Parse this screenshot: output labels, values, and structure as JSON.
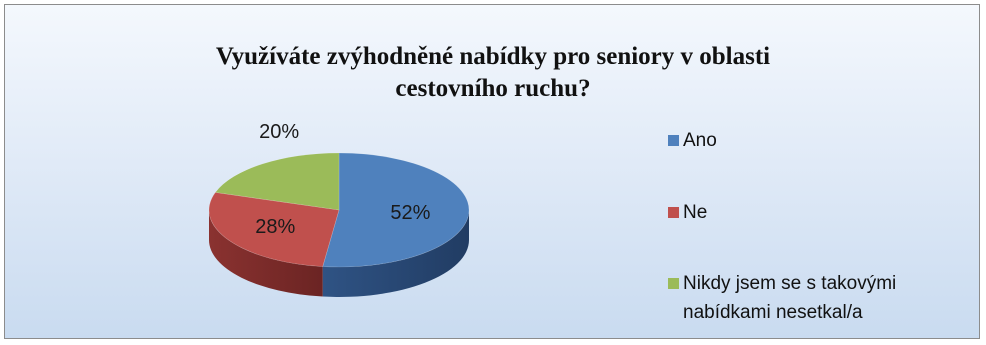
{
  "chart_data": {
    "type": "pie",
    "title": [
      "Využíváte zvýhodněné nabídky pro seniory v oblasti",
      "cestovního ruchu?"
    ],
    "categories": [
      "Ano",
      "Ne",
      "Nikdy jsem se s takovými nabídkami nesetkal/a"
    ],
    "legend_lines": [
      [
        "Ano"
      ],
      [
        "Ne"
      ],
      [
        "Nikdy jsem se s takovými",
        "nabídkami nesetkal/a"
      ]
    ],
    "values": [
      52,
      28,
      20
    ],
    "data_labels": [
      "52%",
      "28%",
      "20%"
    ],
    "colors": [
      "#4f81bd",
      "#c0504d",
      "#9bbb59"
    ],
    "style": "3d",
    "legend": "right"
  }
}
